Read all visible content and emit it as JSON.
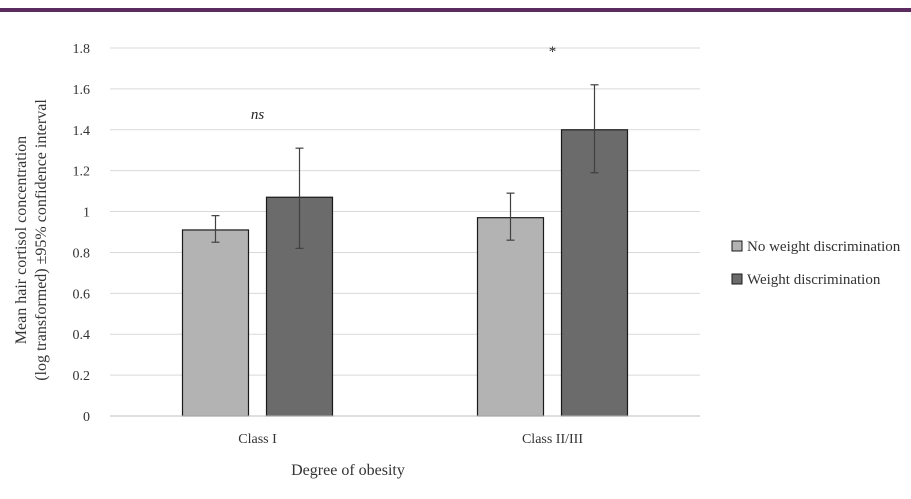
{
  "colors": {
    "top_rule": "#5b2a5e",
    "grid": "#d9d9d9",
    "axis": "#bfbfbf",
    "series": [
      "#b3b3b3",
      "#6b6b6b"
    ],
    "bar_stroke": "#1a1a1a",
    "error_bar": "#404040"
  },
  "chart_data": {
    "type": "bar",
    "categories": [
      "Class I",
      "Class II/III"
    ],
    "series": [
      {
        "name": "No weight discrimination",
        "values": [
          0.91,
          0.97
        ],
        "ci_low": [
          0.85,
          0.86
        ],
        "ci_high": [
          0.98,
          1.09
        ]
      },
      {
        "name": "Weight discrimination",
        "values": [
          1.07,
          1.4
        ],
        "ci_low": [
          0.82,
          1.19
        ],
        "ci_high": [
          1.31,
          1.62
        ]
      }
    ],
    "annotations": [
      "ns",
      "*"
    ],
    "xlabel": "Degree of obesity",
    "ylabel_lines": [
      "Mean hair cortisol concentration",
      "(log transformed) ±95% confidence interval"
    ],
    "ylim": [
      0,
      1.8
    ],
    "yticks": [
      "0",
      "0.2",
      "0.4",
      "0.6",
      "0.8",
      "1",
      "1.2",
      "1.4",
      "1.6",
      "1.8"
    ],
    "grid": true,
    "legend_position": "right"
  }
}
